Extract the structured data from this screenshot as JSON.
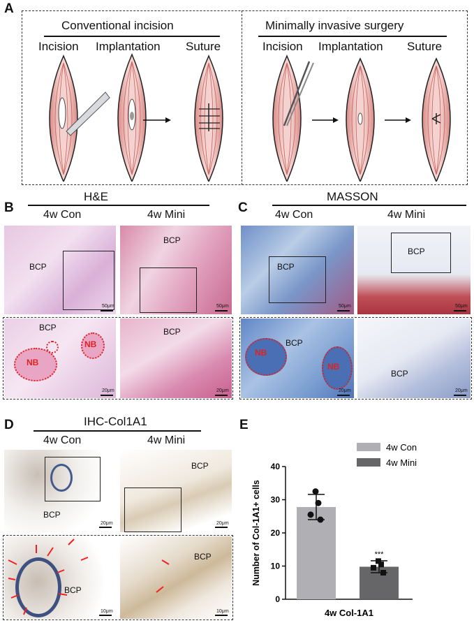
{
  "panels": {
    "A": {
      "label": "A",
      "left_title": "Conventional incision",
      "right_title": "Minimally invasive surgery",
      "left_steps": [
        "Incision",
        "Implantation",
        "Suture"
      ],
      "right_steps": [
        "Incision",
        "Implantation",
        "Suture"
      ]
    },
    "B": {
      "label": "B",
      "title": "H&E",
      "columns": [
        "4w Con",
        "4w Mini"
      ],
      "image_labels": {
        "bcp": "BCP",
        "nb": "NB"
      },
      "scale_top": "50μm",
      "scale_bottom": "20μm"
    },
    "C": {
      "label": "C",
      "title": "MASSON",
      "columns": [
        "4w Con",
        "4w Mini"
      ],
      "image_labels": {
        "bcp": "BCP",
        "nb": "NB"
      },
      "scale_top": "50μm",
      "scale_bottom": "20μm"
    },
    "D": {
      "label": "D",
      "title": "IHC-Col1A1",
      "columns": [
        "4w Con",
        "4w Mini"
      ],
      "image_labels": {
        "bcp": "BCP"
      },
      "scale_top": "20μm",
      "scale_bottom": "10μm"
    },
    "E": {
      "label": "E"
    }
  },
  "chart_data": {
    "type": "bar",
    "categories": [
      "4w Con",
      "4w Mini"
    ],
    "values": [
      27.8,
      9.8
    ],
    "errors": [
      3.8,
      1.8
    ],
    "points": [
      [
        32.5,
        29.0,
        25.5,
        24.0
      ],
      [
        11.5,
        10.5,
        9.5,
        8.0
      ]
    ],
    "colors": [
      "#b0b0b4",
      "#666669"
    ],
    "xlabel": "4w Col-1A1",
    "ylabel": "Number of Col-1A1+ cells",
    "ylim": [
      0,
      40
    ],
    "yticks": [
      0,
      10,
      20,
      30,
      40
    ],
    "legend": [
      "4w Con",
      "4w Mini"
    ],
    "legend_position": "top-right",
    "annotation": "***"
  }
}
